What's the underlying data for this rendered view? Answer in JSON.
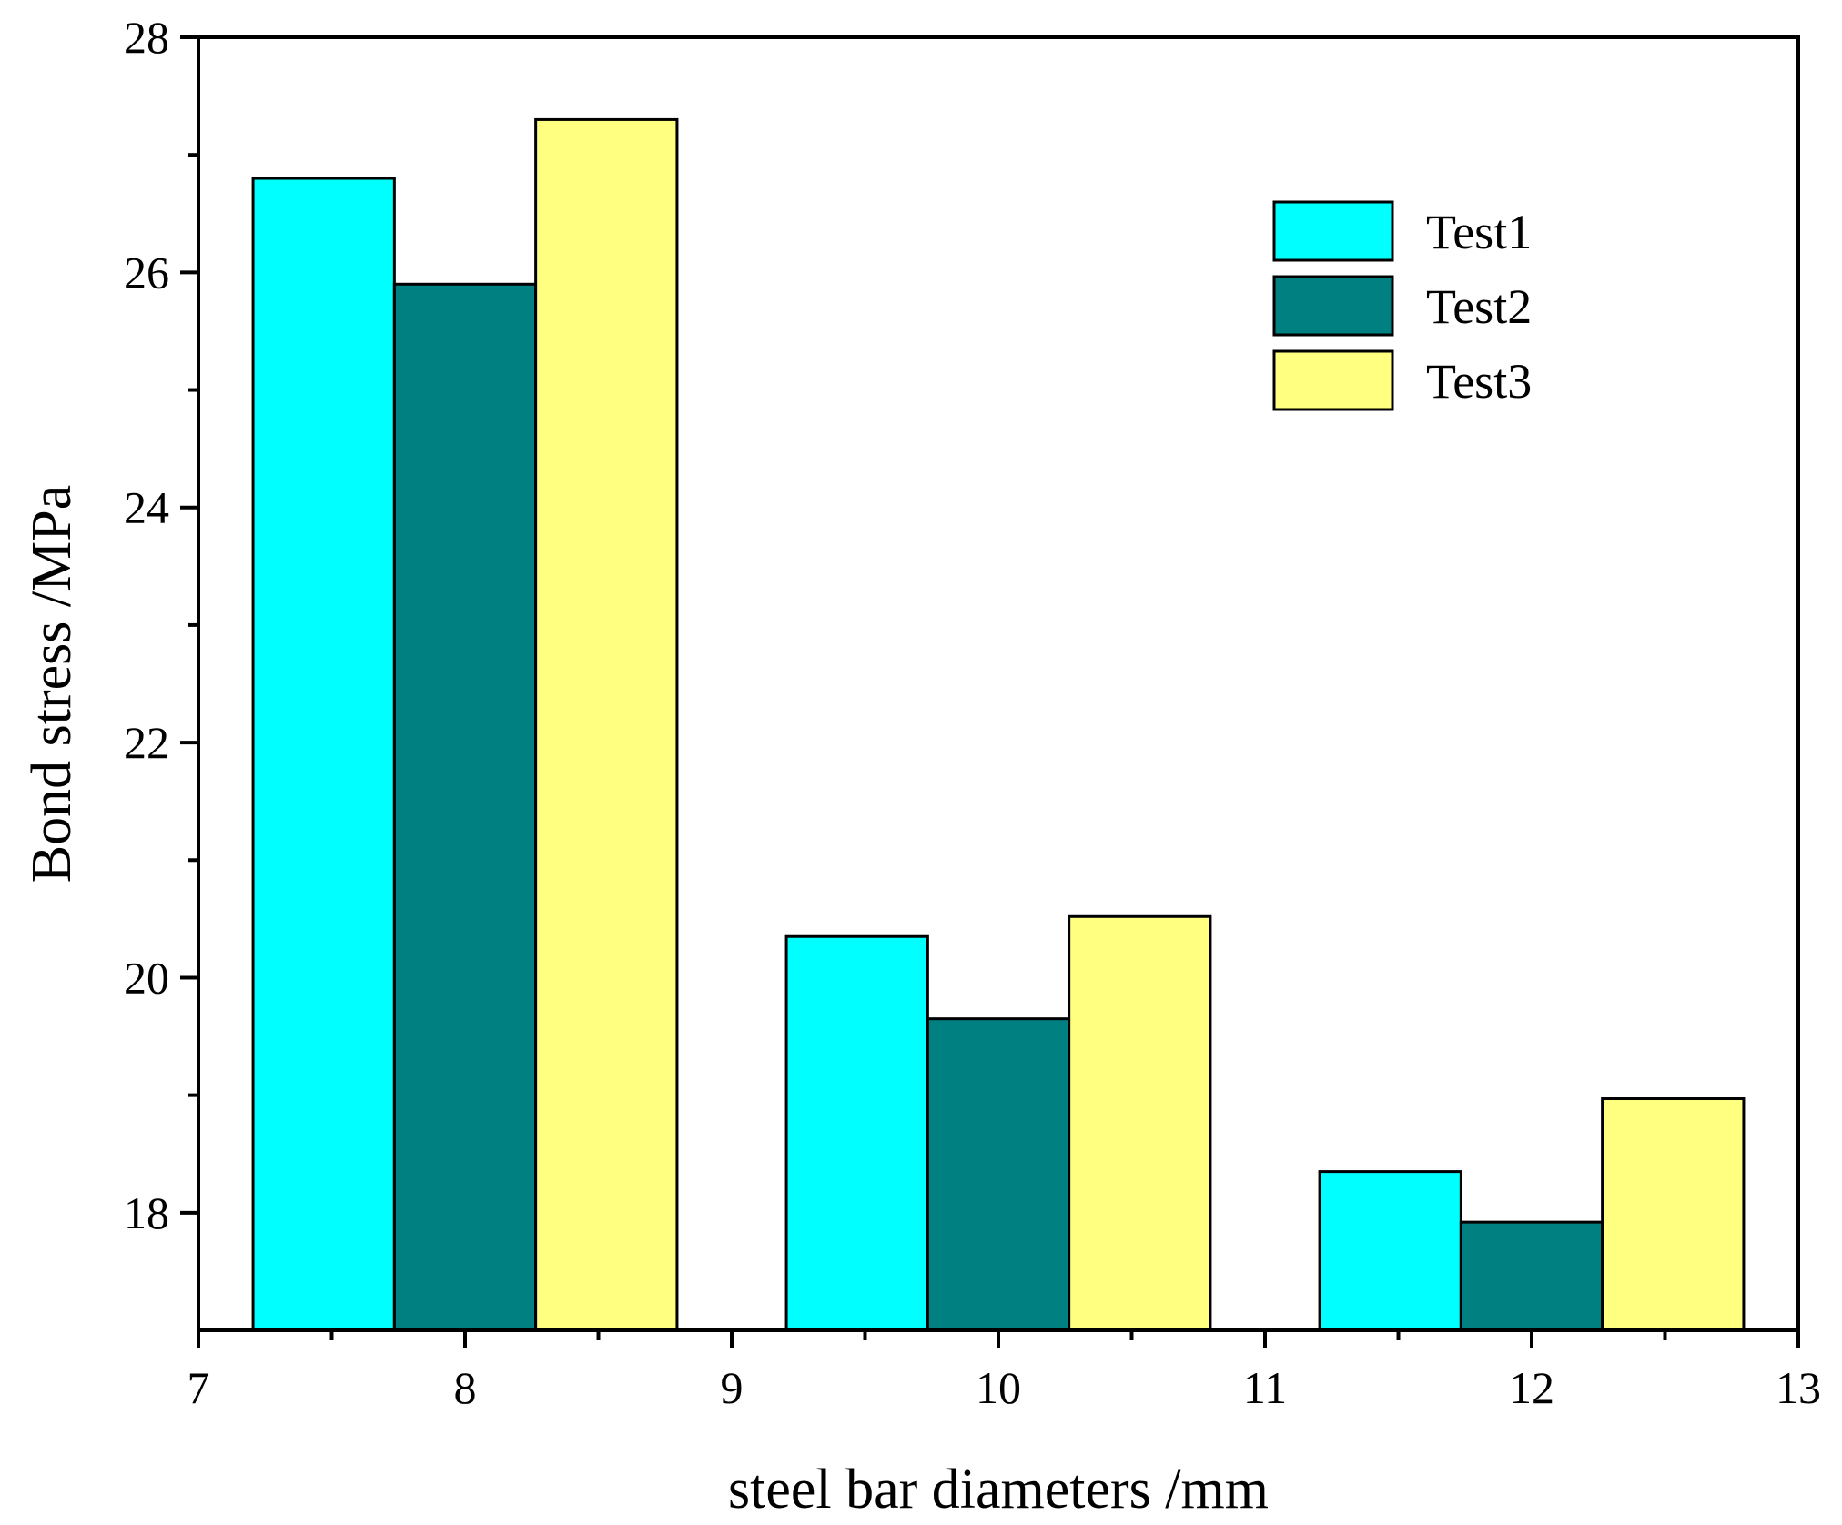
{
  "chart_data": {
    "type": "bar",
    "xlabel": "steel bar diameters /mm",
    "ylabel": "Bond stress /MPa",
    "xlim": [
      7,
      13
    ],
    "ylim": [
      17,
      28
    ],
    "x_ticks": [
      7,
      8,
      9,
      10,
      11,
      12,
      13
    ],
    "y_ticks": [
      18,
      20,
      22,
      24,
      26,
      28
    ],
    "group_centers": [
      8,
      10,
      12
    ],
    "bar_width": 0.53,
    "legend_position": "top-right",
    "series": [
      {
        "name": "Test1",
        "color": "#00FFFF",
        "values": [
          26.8,
          20.35,
          18.35
        ]
      },
      {
        "name": "Test2",
        "color": "#008080",
        "values": [
          25.9,
          19.65,
          17.92
        ]
      },
      {
        "name": "Test3",
        "color": "#FFFF80",
        "values": [
          27.3,
          20.52,
          18.97
        ]
      }
    ]
  }
}
